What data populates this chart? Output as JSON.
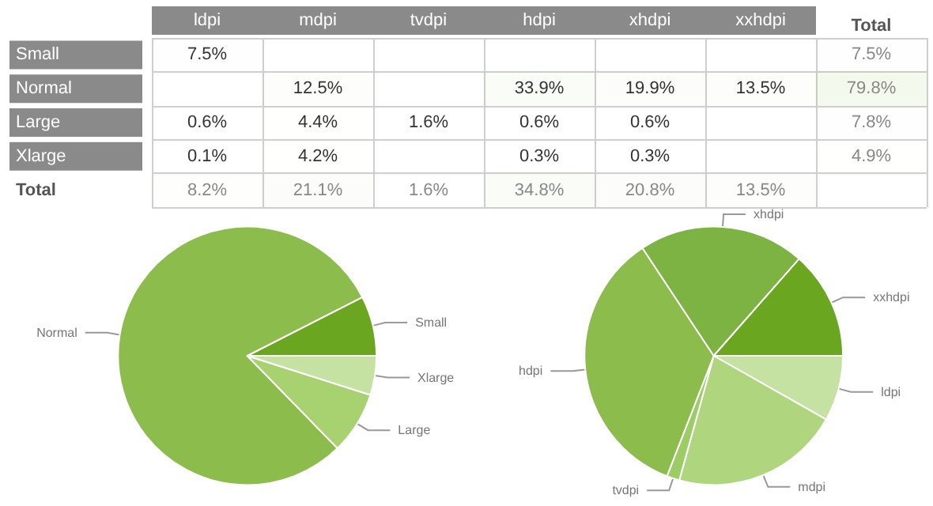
{
  "chart_data": [
    {
      "type": "heatmap",
      "categories": [
        "ldpi",
        "mdpi",
        "tvdpi",
        "hdpi",
        "xhdpi",
        "xxhdpi",
        "Total"
      ],
      "y_categories": [
        "Small",
        "Normal",
        "Large",
        "Xlarge",
        "Total"
      ],
      "cells": [
        [
          7.5,
          null,
          null,
          null,
          null,
          null,
          7.5
        ],
        [
          null,
          12.5,
          null,
          33.9,
          19.9,
          13.5,
          79.8
        ],
        [
          0.6,
          4.4,
          1.6,
          0.6,
          0.6,
          null,
          7.8
        ],
        [
          0.1,
          4.2,
          null,
          0.3,
          0.3,
          null,
          4.9
        ],
        [
          8.2,
          21.1,
          1.6,
          34.8,
          20.8,
          13.5,
          null
        ]
      ],
      "cell_labels": [
        [
          "7.5%",
          null,
          null,
          null,
          null,
          null,
          "7.5%"
        ],
        [
          null,
          "12.5%",
          null,
          "33.9%",
          "19.9%",
          "13.5%",
          "79.8%"
        ],
        [
          "0.6%",
          "4.4%",
          "1.6%",
          "0.6%",
          "0.6%",
          null,
          "7.8%"
        ],
        [
          "0.1%",
          "4.2%",
          null,
          "0.3%",
          "0.3%",
          null,
          "4.9%"
        ],
        [
          "8.2%",
          "21.1%",
          "1.6%",
          "34.8%",
          "20.8%",
          "13.5%",
          null
        ]
      ]
    },
    {
      "type": "pie",
      "categories": [
        "Small",
        "Normal",
        "Large",
        "Xlarge"
      ],
      "values": [
        7.5,
        79.8,
        7.8,
        4.9
      ],
      "colors": [
        "#6aa620",
        "#8cbd4c",
        "#a8d270",
        "#c6e2a3"
      ]
    },
    {
      "type": "pie",
      "categories": [
        "ldpi",
        "mdpi",
        "tvdpi",
        "hdpi",
        "xhdpi",
        "xxhdpi"
      ],
      "values": [
        8.2,
        21.1,
        1.6,
        34.8,
        20.8,
        13.5
      ],
      "colors": [
        "#c6e2a3",
        "#afd67e",
        "#9ccc65",
        "#8cbd4c",
        "#7cb342",
        "#6aa620"
      ]
    }
  ]
}
